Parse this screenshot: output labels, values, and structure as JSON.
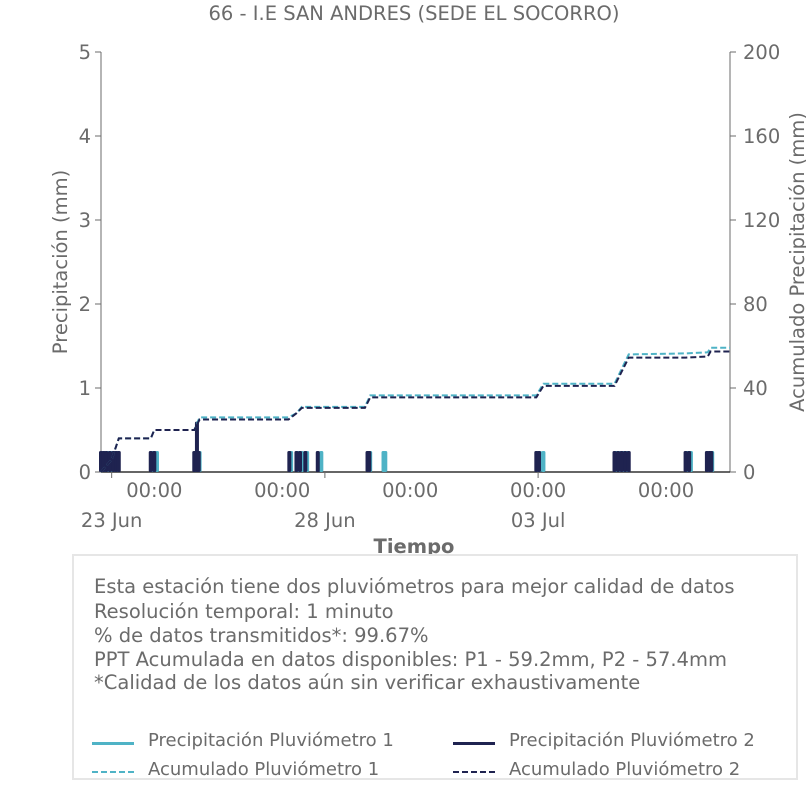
{
  "chart_data": {
    "type": "bar+line",
    "title": "66 - I.E SAN ANDRES (SEDE EL SOCORRO)",
    "xlabel": "Tiempo",
    "ylabel_left": "Precipitación (mm)",
    "ylabel_right": "Acumulado Precipitación (mm)",
    "ylim_left": [
      0,
      5
    ],
    "ylim_right": [
      0,
      200
    ],
    "yticks_left": [
      "0",
      "1",
      "2",
      "3",
      "4",
      "5"
    ],
    "yticks_right": [
      "0",
      "40",
      "80",
      "120",
      "160",
      "200"
    ],
    "xlim": [
      "2025-06-22T18:00",
      "2025-07-07T12:00"
    ],
    "x_time_ticks": [
      {
        "t": "2025-06-24T00:00",
        "label": "00:00"
      },
      {
        "t": "2025-06-27T00:00",
        "label": "00:00"
      },
      {
        "t": "2025-06-30T00:00",
        "label": "00:00"
      },
      {
        "t": "2025-07-03T00:00",
        "label": "00:00"
      },
      {
        "t": "2025-07-06T00:00",
        "label": "00:00"
      }
    ],
    "x_date_ticks": [
      {
        "t": "2025-06-23T00:00",
        "label": "23 Jun"
      },
      {
        "t": "2025-06-28T00:00",
        "label": "28 Jun"
      },
      {
        "t": "2025-07-03T00:00",
        "label": "03 Jul"
      }
    ],
    "grid": false,
    "series": [
      {
        "name": "Precipitación Pluviómetro 1",
        "kind": "bar",
        "axis": "left",
        "color": "#4fb3c6",
        "points": [
          [
            "2025-06-22T18:30",
            0.25
          ],
          [
            "2025-06-22T20:00",
            0.25
          ],
          [
            "2025-06-22T22:00",
            0.25
          ],
          [
            "2025-06-23T00:00",
            0.25
          ],
          [
            "2025-06-23T02:00",
            0.25
          ],
          [
            "2025-06-23T03:30",
            0.25
          ],
          [
            "2025-06-23T23:00",
            0.25
          ],
          [
            "2025-06-24T01:30",
            0.25
          ],
          [
            "2025-06-25T00:00",
            0.25
          ],
          [
            "2025-06-25T01:30",
            0.25
          ],
          [
            "2025-06-27T05:00",
            0.25
          ],
          [
            "2025-06-27T09:00",
            0.25
          ],
          [
            "2025-06-27T11:00",
            0.25
          ],
          [
            "2025-06-27T14:00",
            0.25
          ],
          [
            "2025-06-27T22:00",
            0.25
          ],
          [
            "2025-06-29T00:30",
            0.25
          ],
          [
            "2025-06-29T01:30",
            0.25
          ],
          [
            "2025-06-29T09:00",
            0.25
          ],
          [
            "2025-06-29T10:00",
            0.25
          ],
          [
            "2025-07-02T23:30",
            0.25
          ],
          [
            "2025-07-03T01:00",
            0.25
          ],
          [
            "2025-07-03T03:00",
            0.25
          ],
          [
            "2025-07-04T20:00",
            0.25
          ],
          [
            "2025-07-04T22:00",
            0.25
          ],
          [
            "2025-07-05T00:00",
            0.25
          ],
          [
            "2025-07-05T02:00",
            0.25
          ],
          [
            "2025-07-06T12:00",
            0.25
          ],
          [
            "2025-07-06T14:00",
            0.25
          ],
          [
            "2025-07-07T00:00",
            0.25
          ],
          [
            "2025-07-07T02:00",
            0.25
          ]
        ]
      },
      {
        "name": "Precipitación Pluviómetro 2",
        "kind": "bar",
        "axis": "left",
        "color": "#1f2350",
        "points": [
          [
            "2025-06-22T18:00",
            0.25
          ],
          [
            "2025-06-22T19:30",
            0.25
          ],
          [
            "2025-06-22T21:00",
            0.25
          ],
          [
            "2025-06-22T23:00",
            0.25
          ],
          [
            "2025-06-23T01:00",
            0.25
          ],
          [
            "2025-06-23T02:30",
            0.25
          ],
          [
            "2025-06-23T04:00",
            0.25
          ],
          [
            "2025-06-23T22:00",
            0.25
          ],
          [
            "2025-06-24T00:00",
            0.25
          ],
          [
            "2025-06-24T22:30",
            0.25
          ],
          [
            "2025-06-25T00:00",
            0.6
          ],
          [
            "2025-06-25T01:00",
            0.25
          ],
          [
            "2025-06-27T04:00",
            0.25
          ],
          [
            "2025-06-27T08:00",
            0.25
          ],
          [
            "2025-06-27T10:00",
            0.25
          ],
          [
            "2025-06-27T13:00",
            0.25
          ],
          [
            "2025-06-27T20:00",
            0.25
          ],
          [
            "2025-06-29T00:00",
            0.25
          ],
          [
            "2025-06-29T01:00",
            0.25
          ],
          [
            "2025-07-02T23:00",
            0.25
          ],
          [
            "2025-07-03T00:30",
            0.25
          ],
          [
            "2025-07-04T19:00",
            0.25
          ],
          [
            "2025-07-04T21:00",
            0.25
          ],
          [
            "2025-07-04T23:00",
            0.25
          ],
          [
            "2025-07-05T01:00",
            0.25
          ],
          [
            "2025-07-05T03:00",
            0.25
          ],
          [
            "2025-07-06T11:00",
            0.25
          ],
          [
            "2025-07-06T13:00",
            0.25
          ],
          [
            "2025-07-06T23:00",
            0.25
          ],
          [
            "2025-07-07T00:30",
            0.25
          ],
          [
            "2025-07-07T01:30",
            0.25
          ]
        ]
      },
      {
        "name": "Acumulado Pluviómetro 1",
        "kind": "line-dashed",
        "axis": "right",
        "color": "#4fb3c6",
        "points": [
          [
            "2025-06-22T18:00",
            0
          ],
          [
            "2025-06-23T00:00",
            6
          ],
          [
            "2025-06-23T04:00",
            16
          ],
          [
            "2025-06-23T22:00",
            16
          ],
          [
            "2025-06-24T00:00",
            20
          ],
          [
            "2025-06-24T22:30",
            20
          ],
          [
            "2025-06-25T01:30",
            26
          ],
          [
            "2025-06-27T03:30",
            26
          ],
          [
            "2025-06-27T08:00",
            28
          ],
          [
            "2025-06-27T11:00",
            31
          ],
          [
            "2025-06-28T22:30",
            31
          ],
          [
            "2025-06-29T01:30",
            36.5
          ],
          [
            "2025-07-02T23:00",
            36.5
          ],
          [
            "2025-07-03T03:00",
            42
          ],
          [
            "2025-07-04T19:00",
            42
          ],
          [
            "2025-07-05T03:00",
            56
          ],
          [
            "2025-07-06T11:00",
            56.5
          ],
          [
            "2025-07-06T23:30",
            57
          ],
          [
            "2025-07-07T01:00",
            59.2
          ],
          [
            "2025-07-07T12:00",
            59.2
          ]
        ]
      },
      {
        "name": "Acumulado Pluviómetro 2",
        "kind": "line-dashed",
        "axis": "right",
        "color": "#1f2350",
        "points": [
          [
            "2025-06-22T18:00",
            0
          ],
          [
            "2025-06-23T00:00",
            6
          ],
          [
            "2025-06-23T04:00",
            16
          ],
          [
            "2025-06-23T22:00",
            16
          ],
          [
            "2025-06-24T00:00",
            20
          ],
          [
            "2025-06-24T22:30",
            20
          ],
          [
            "2025-06-25T01:30",
            25
          ],
          [
            "2025-06-27T03:30",
            25
          ],
          [
            "2025-06-27T08:00",
            28
          ],
          [
            "2025-06-27T11:00",
            30.5
          ],
          [
            "2025-06-28T22:30",
            30.5
          ],
          [
            "2025-06-29T01:30",
            35.5
          ],
          [
            "2025-07-02T23:00",
            35.5
          ],
          [
            "2025-07-03T03:00",
            41
          ],
          [
            "2025-07-04T19:00",
            41
          ],
          [
            "2025-07-05T03:00",
            54.5
          ],
          [
            "2025-07-06T11:00",
            54.5
          ],
          [
            "2025-07-06T23:30",
            55
          ],
          [
            "2025-07-07T01:00",
            57.4
          ],
          [
            "2025-07-07T12:00",
            57.4
          ]
        ]
      }
    ]
  },
  "info": {
    "lines": [
      "Esta estación tiene dos pluviómetros para mejor calidad de datos",
      "Resolución temporal: 1 minuto",
      "% de datos transmitidos*: 99.67%",
      "PPT Acumulada en datos disponibles: P1 - 59.2mm, P2 - 57.4mm",
      "*Calidad de los datos aún sin verificar exhaustivamente"
    ]
  },
  "legend": {
    "items": [
      {
        "label": "Precipitación Pluviómetro 1",
        "color": "#4fb3c6",
        "style": "solid"
      },
      {
        "label": "Precipitación Pluviómetro 2",
        "color": "#1f2350",
        "style": "solid"
      },
      {
        "label": "Acumulado Pluviómetro 1",
        "color": "#4fb3c6",
        "style": "dashed"
      },
      {
        "label": "Acumulado Pluviómetro 2",
        "color": "#1f2350",
        "style": "dashed"
      }
    ]
  }
}
